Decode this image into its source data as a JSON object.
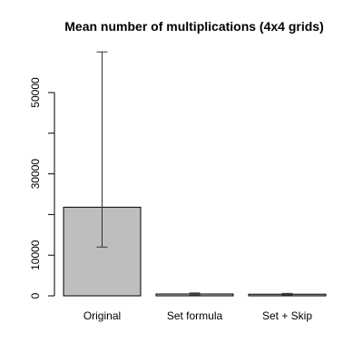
{
  "chart_data": {
    "type": "bar",
    "title": "Mean number of multiplications (4x4 grids)",
    "xlabel": "",
    "ylabel": "",
    "categories": [
      "Original",
      "Set formula",
      "Set + Skip"
    ],
    "values": [
      21800,
      450,
      400
    ],
    "error_low": [
      12000,
      150,
      150
    ],
    "error_high": [
      60000,
      700,
      600
    ],
    "yticks": [
      0,
      10000,
      30000,
      50000
    ],
    "ylim": [
      0,
      61000
    ],
    "grid": false,
    "legend": "none",
    "colors": {
      "bar_fill": "#bebebe",
      "bar_stroke": "#000000",
      "error_bar": "#333333",
      "axis": "#000000"
    }
  }
}
